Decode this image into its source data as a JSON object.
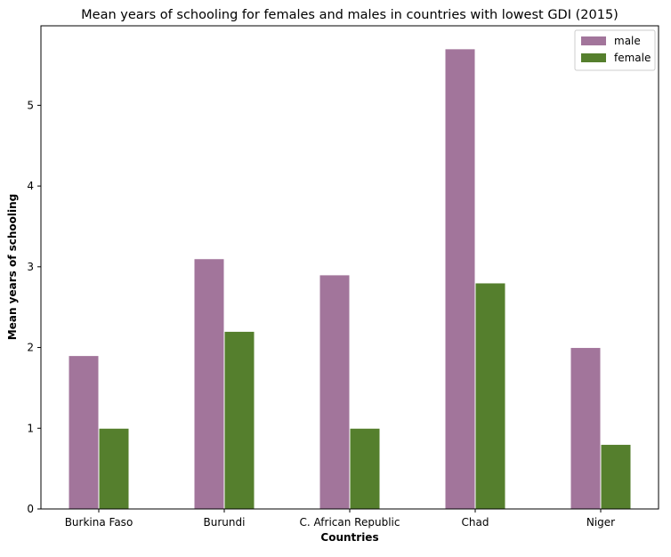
{
  "chart_data": {
    "type": "bar",
    "title": "Mean years of schooling for females and males in countries with lowest GDI (2015)",
    "xlabel": "Countries",
    "ylabel": "Mean years of schooling",
    "categories": [
      "Burkina Faso",
      "Burundi",
      "C. African Republic",
      "Chad",
      "Niger"
    ],
    "series": [
      {
        "name": "male",
        "values": [
          1.9,
          3.1,
          2.9,
          5.7,
          2.0
        ],
        "color": "#a2759b"
      },
      {
        "name": "female",
        "values": [
          1.0,
          2.2,
          1.0,
          2.8,
          0.8
        ],
        "color": "#557f2d"
      }
    ],
    "ylim": [
      0,
      5.985
    ],
    "yticks": [
      0,
      1,
      2,
      3,
      4,
      5
    ],
    "grid": false,
    "legend_position": "top-right"
  }
}
